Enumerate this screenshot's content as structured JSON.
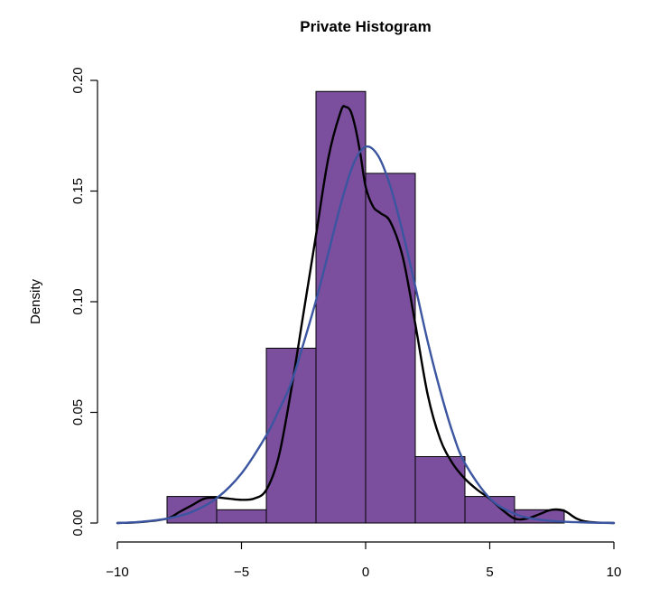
{
  "chart_data": {
    "type": "bar",
    "title": "Private Histogram",
    "xlabel": "",
    "ylabel": "Density",
    "xlim": [
      -10,
      10
    ],
    "ylim": [
      0,
      0.2
    ],
    "x_ticks": [
      -10,
      -5,
      0,
      5,
      10
    ],
    "y_ticks": [
      0.0,
      0.05,
      0.1,
      0.15,
      0.2
    ],
    "x_tick_labels": [
      "−10",
      "−5",
      "0",
      "5",
      "10"
    ],
    "y_tick_labels": [
      "0.00",
      "0.05",
      "0.10",
      "0.15",
      "0.20"
    ],
    "bins": [
      {
        "start": -8,
        "end": -6,
        "density": 0.012
      },
      {
        "start": -6,
        "end": -4,
        "density": 0.006
      },
      {
        "start": -4,
        "end": -2,
        "density": 0.079
      },
      {
        "start": -2,
        "end": 0,
        "density": 0.195
      },
      {
        "start": 0,
        "end": 2,
        "density": 0.158
      },
      {
        "start": 2,
        "end": 4,
        "density": 0.03
      },
      {
        "start": 4,
        "end": 6,
        "density": 0.012
      },
      {
        "start": 6,
        "end": 8,
        "density": 0.006
      }
    ],
    "bar_color": "#7b4f9e",
    "series": [
      {
        "line_color": "#000000",
        "x": [
          -10,
          -9,
          -8,
          -7.5,
          -7,
          -6.5,
          -6,
          -5.5,
          -5,
          -4.5,
          -4,
          -3.5,
          -3,
          -2.5,
          -2,
          -1.5,
          -1,
          -0.8,
          -0.6,
          -0.4,
          -0.2,
          0,
          0.3,
          0.6,
          1,
          1.5,
          2,
          2.5,
          3,
          3.5,
          4,
          4.5,
          5,
          5.5,
          6,
          6.5,
          7,
          7.5,
          8,
          8.5,
          9,
          10
        ],
        "y": [
          0.0,
          0.0005,
          0.002,
          0.005,
          0.008,
          0.011,
          0.0115,
          0.011,
          0.0105,
          0.011,
          0.015,
          0.03,
          0.06,
          0.095,
          0.13,
          0.165,
          0.186,
          0.188,
          0.186,
          0.178,
          0.166,
          0.152,
          0.143,
          0.14,
          0.136,
          0.12,
          0.09,
          0.058,
          0.038,
          0.027,
          0.02,
          0.015,
          0.011,
          0.006,
          0.002,
          0.002,
          0.004,
          0.006,
          0.0055,
          0.002,
          0.0005,
          0.0
        ]
      },
      {
        "line_color": "#3b55a0",
        "x": [
          -10,
          -9,
          -8,
          -7,
          -6,
          -5,
          -4,
          -3.5,
          -3,
          -2.5,
          -2,
          -1.5,
          -1,
          -0.5,
          0,
          0.5,
          1,
          1.5,
          2,
          2.5,
          3,
          3.5,
          4,
          5,
          6,
          7,
          8,
          9,
          10
        ],
        "y": [
          0.0,
          0.0006,
          0.002,
          0.005,
          0.0112,
          0.0224,
          0.0396,
          0.0508,
          0.0632,
          0.0812,
          0.1005,
          0.122,
          0.144,
          0.162,
          0.17,
          0.166,
          0.152,
          0.131,
          0.107,
          0.082,
          0.06,
          0.041,
          0.027,
          0.0112,
          0.0042,
          0.0015,
          0.0006,
          0.0002,
          0.0
        ]
      }
    ]
  }
}
